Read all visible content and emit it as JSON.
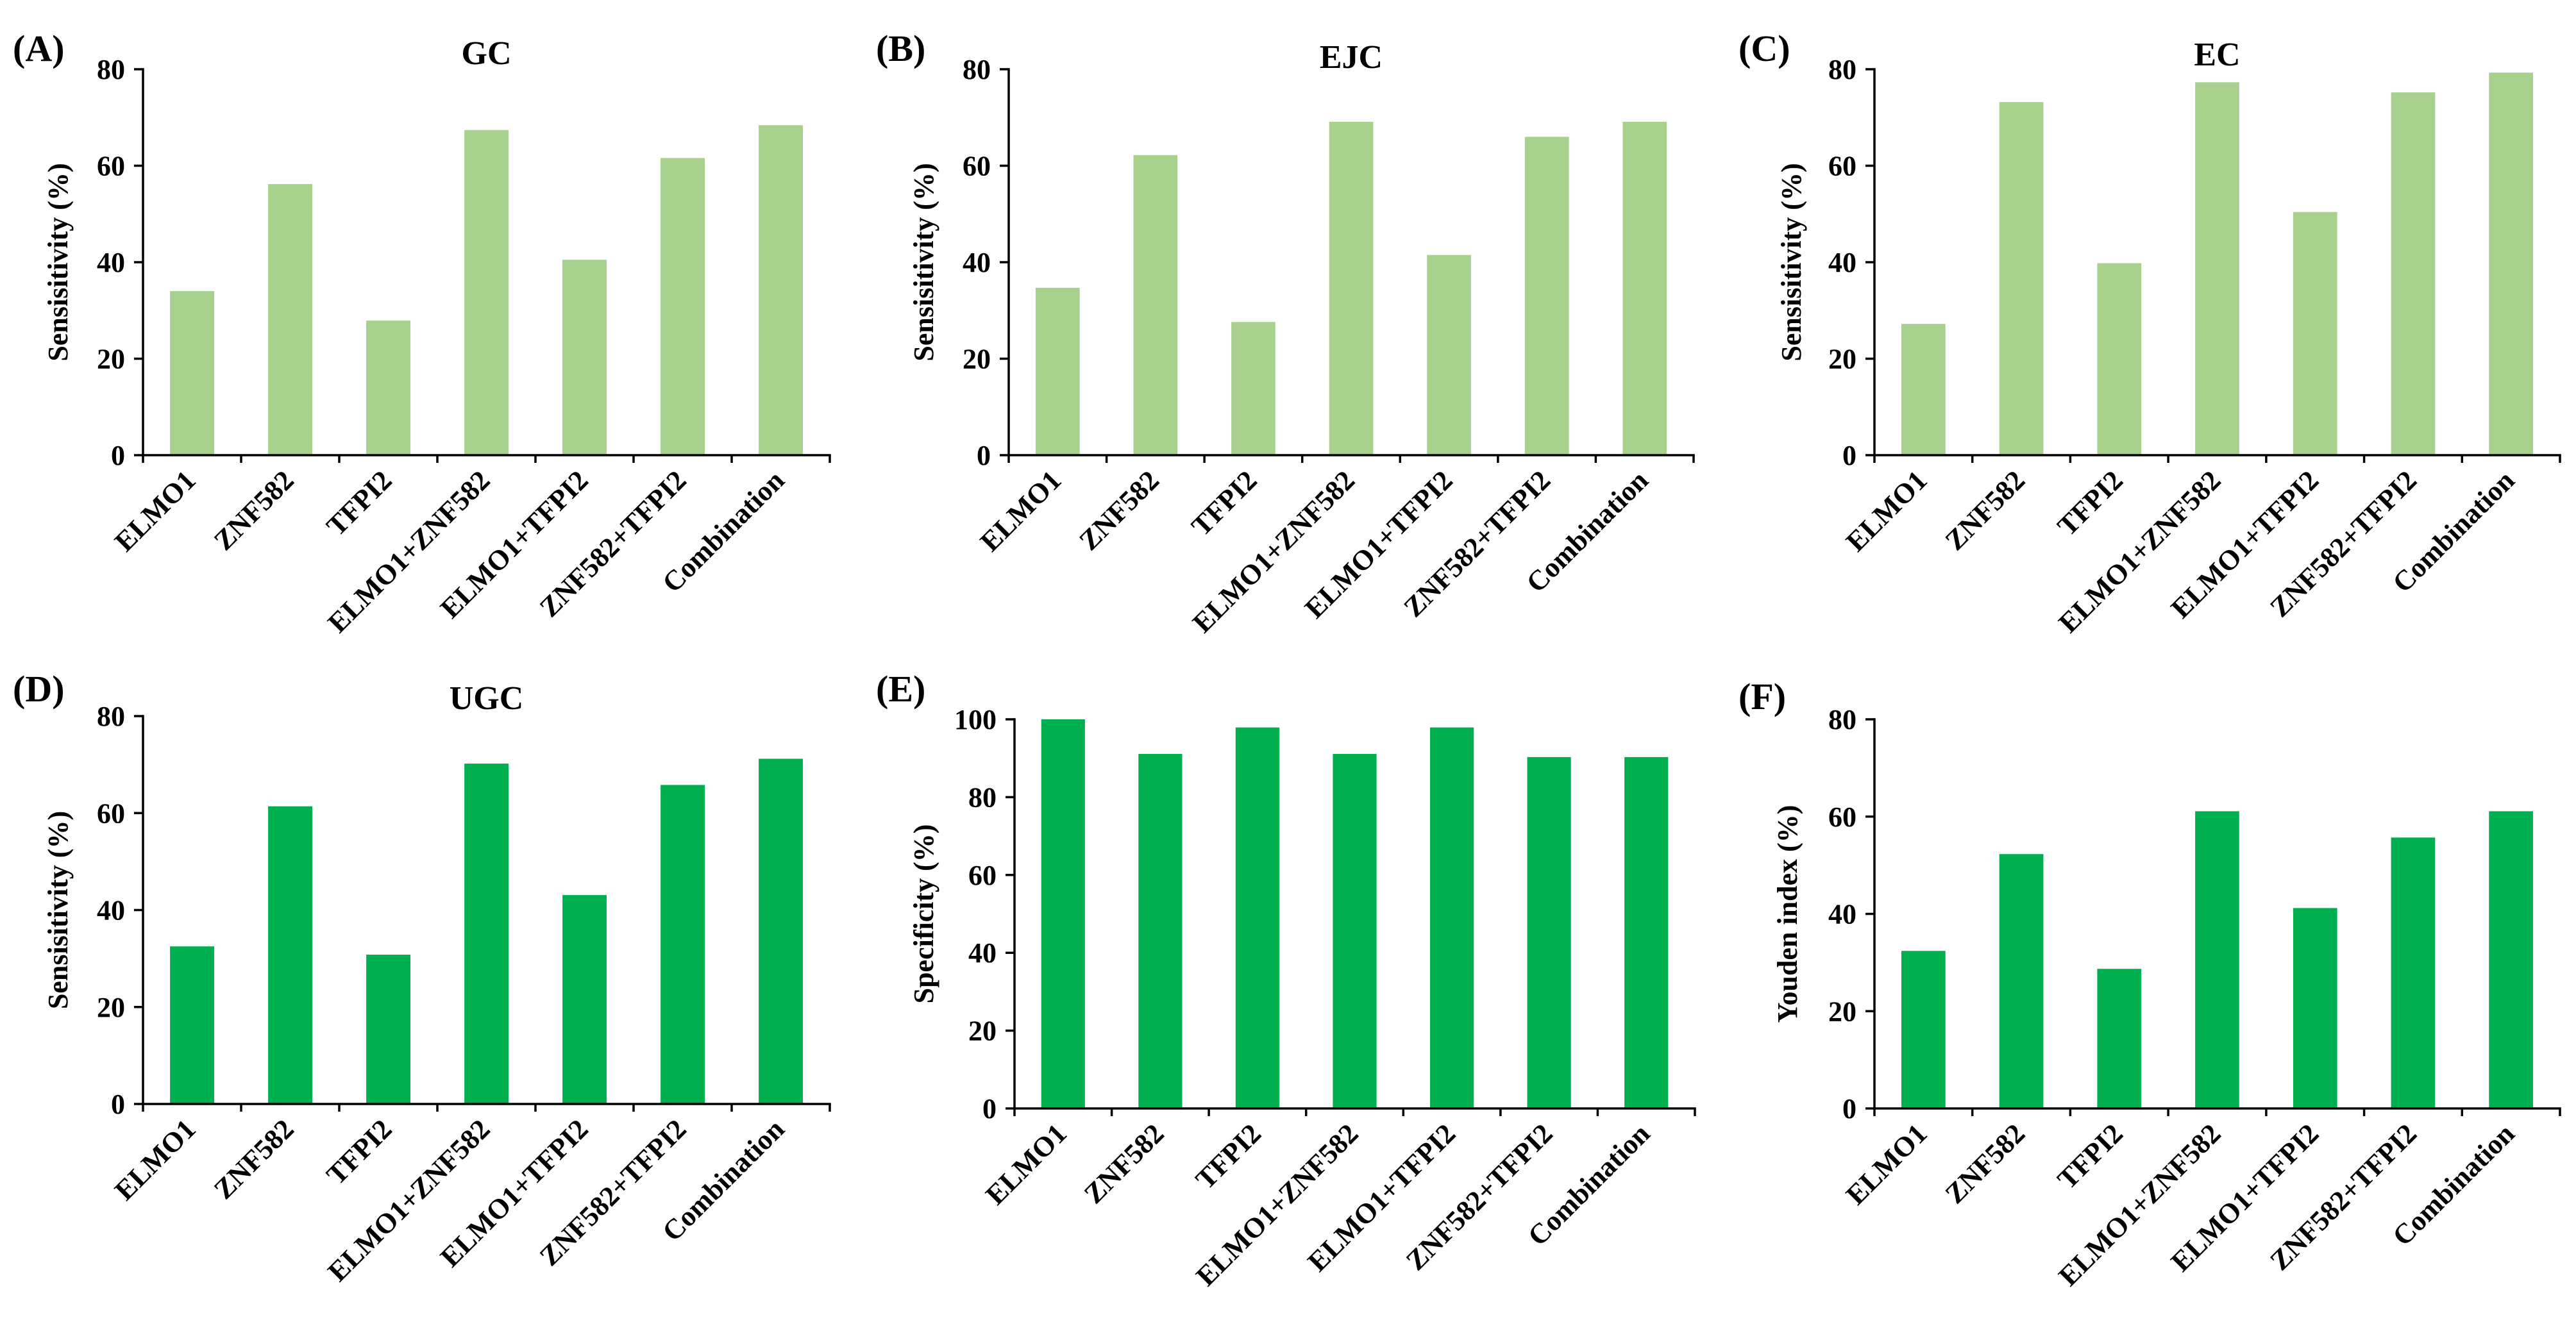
{
  "chart_data": [
    {
      "panel_label": "(A)",
      "type": "bar",
      "title": "GC",
      "xlabel": "",
      "ylabel": "Sensisitivity (%)",
      "ylim": [
        0,
        80
      ],
      "yticks": [
        0,
        20,
        40,
        60,
        80
      ],
      "categories": [
        "ELMO1",
        "ZNF582",
        "TFPI2",
        "ELMO1+ZNF582",
        "ELMO1+TFPI2",
        "ZNF582+TFPI2",
        "Combination"
      ],
      "values": [
        34.0,
        56.2,
        27.9,
        67.4,
        40.5,
        61.6,
        68.4
      ],
      "color": "#A9D18E",
      "grid": false,
      "legend": "none"
    },
    {
      "panel_label": "(B)",
      "type": "bar",
      "title": "EJC",
      "xlabel": "",
      "ylabel": "Sensisitivity (%)",
      "ylim": [
        0,
        80
      ],
      "yticks": [
        0,
        20,
        40,
        60,
        80
      ],
      "categories": [
        "ELMO1",
        "ZNF582",
        "TFPI2",
        "ELMO1+ZNF582",
        "ELMO1+TFPI2",
        "ZNF582+TFPI2",
        "Combination"
      ],
      "values": [
        34.7,
        62.2,
        27.6,
        69.1,
        41.5,
        66.0,
        69.1
      ],
      "color": "#A9D18E",
      "grid": false,
      "legend": "none"
    },
    {
      "panel_label": "(C)",
      "type": "bar",
      "title": "EC",
      "xlabel": "",
      "ylabel": "Sensisitivity (%)",
      "ylim": [
        0,
        80
      ],
      "yticks": [
        0,
        20,
        40,
        60,
        80
      ],
      "categories": [
        "ELMO1",
        "ZNF582",
        "TFPI2",
        "ELMO1+ZNF582",
        "ELMO1+TFPI2",
        "ZNF582+TFPI2",
        "Combination"
      ],
      "values": [
        27.2,
        73.2,
        39.8,
        77.3,
        50.4,
        75.2,
        79.3
      ],
      "color": "#A9D18E",
      "grid": false,
      "legend": "none"
    },
    {
      "panel_label": "(D)",
      "type": "bar",
      "title": "UGC",
      "xlabel": "",
      "ylabel": "Sensisitivity (%)",
      "ylim": [
        0,
        80
      ],
      "yticks": [
        0,
        20,
        40,
        60,
        80
      ],
      "categories": [
        "ELMO1",
        "ZNF582",
        "TFPI2",
        "ELMO1+ZNF582",
        "ELMO1+TFPI2",
        "ZNF582+TFPI2",
        "Combination"
      ],
      "values": [
        32.5,
        61.4,
        30.8,
        70.2,
        43.1,
        65.8,
        71.2
      ],
      "color": "#00B050",
      "grid": false,
      "legend": "none"
    },
    {
      "panel_label": "(E)",
      "type": "bar",
      "title": "",
      "xlabel": "",
      "ylabel": "Specificity (%)",
      "ylim": [
        0,
        100
      ],
      "yticks": [
        0,
        20,
        40,
        60,
        80,
        100
      ],
      "categories": [
        "ELMO1",
        "ZNF582",
        "TFPI2",
        "ELMO1+ZNF582",
        "ELMO1+TFPI2",
        "ZNF582+TFPI2",
        "Combination"
      ],
      "values": [
        100.0,
        91.1,
        97.9,
        91.1,
        97.9,
        90.3,
        90.3
      ],
      "color": "#00B050",
      "grid": false,
      "legend": "none"
    },
    {
      "panel_label": "(F)",
      "type": "bar",
      "title": "",
      "xlabel": "",
      "ylabel": "Youden index (%)",
      "ylim": [
        0,
        80
      ],
      "yticks": [
        0,
        20,
        40,
        60,
        80
      ],
      "categories": [
        "ELMO1",
        "ZNF582",
        "TFPI2",
        "ELMO1+ZNF582",
        "ELMO1+TFPI2",
        "ZNF582+TFPI2",
        "Combination"
      ],
      "values": [
        32.4,
        52.3,
        28.7,
        61.1,
        41.2,
        55.7,
        61.1
      ],
      "color": "#00B050",
      "grid": false,
      "legend": "none"
    }
  ]
}
